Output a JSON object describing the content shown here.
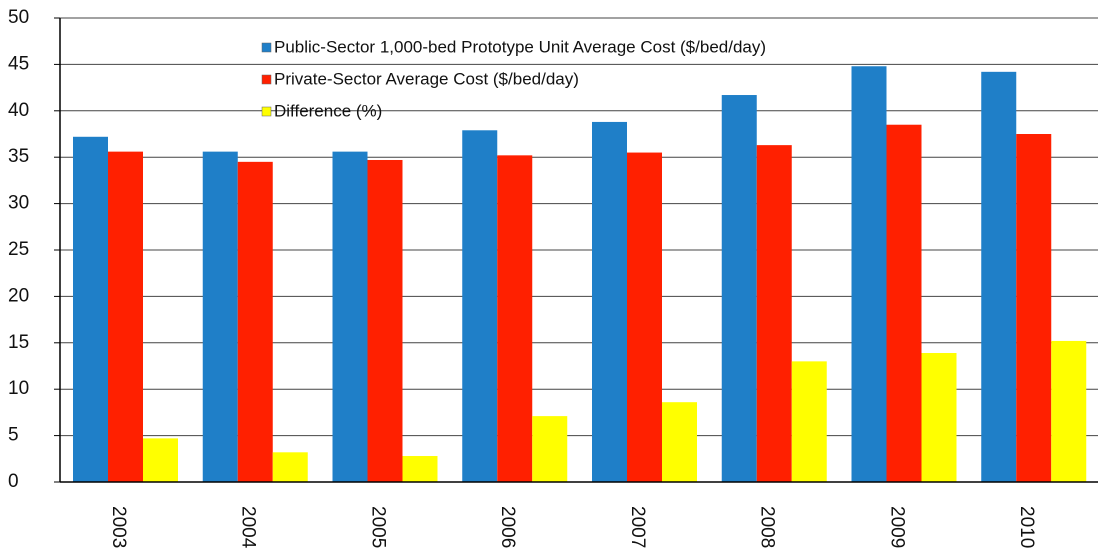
{
  "chart_data": {
    "type": "bar",
    "categories": [
      "2003",
      "2004",
      "2005",
      "2006",
      "2007",
      "2008",
      "2009",
      "2010"
    ],
    "series": [
      {
        "name": "Public-Sector 1,000-bed Prototype Unit Average Cost ($/bed/day)",
        "color": "#1f7fc8",
        "values": [
          37.2,
          35.6,
          35.6,
          37.9,
          38.8,
          41.7,
          44.8,
          44.2
        ]
      },
      {
        "name": "Private-Sector Average Cost ($/bed/day)",
        "color": "#ff2000",
        "values": [
          35.6,
          34.5,
          34.7,
          35.2,
          35.5,
          36.3,
          38.5,
          37.5
        ]
      },
      {
        "name": "Difference (%)",
        "color": "#ffff00",
        "values": [
          4.7,
          3.2,
          2.8,
          7.1,
          8.6,
          13.0,
          13.9,
          15.2
        ]
      }
    ],
    "ylim": [
      0,
      50
    ],
    "yticks": [
      0,
      5,
      10,
      15,
      20,
      25,
      30,
      35,
      40,
      45,
      50
    ],
    "grid": true,
    "legend": "top"
  }
}
